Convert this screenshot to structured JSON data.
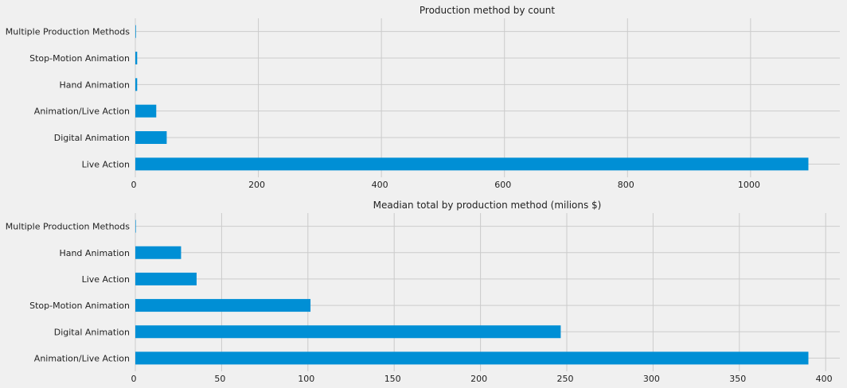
{
  "chart_data": [
    {
      "type": "bar",
      "orientation": "horizontal",
      "title": "Production method by count",
      "xlabel": "",
      "ylabel": "",
      "categories": [
        "Live Action",
        "Digital Animation",
        "Animation/Live Action",
        "Hand Animation",
        "Stop-Motion Animation",
        "Multiple Production Methods"
      ],
      "values": [
        1094,
        51,
        34,
        3,
        3,
        1
      ],
      "xlim": [
        0,
        1150
      ],
      "xticks": [
        "0",
        "200",
        "400",
        "600",
        "800",
        "1000"
      ],
      "grid": true,
      "bar_color": "#008fd5"
    },
    {
      "type": "bar",
      "orientation": "horizontal",
      "title": "Meadian total by production method (milions $)",
      "xlabel": "",
      "ylabel": "",
      "categories": [
        "Animation/Live Action",
        "Digital Animation",
        "Stop-Motion Animation",
        "Live Action",
        "Hand Animation",
        "Multiple Production Methods"
      ],
      "values": [
        390,
        246.5,
        101.5,
        35.5,
        26.5,
        0.3
      ],
      "xlim": [
        0,
        410
      ],
      "xticks": [
        "0",
        "50",
        "100",
        "150",
        "200",
        "250",
        "300",
        "350",
        "400"
      ],
      "grid": true,
      "bar_color": "#008fd5"
    }
  ]
}
